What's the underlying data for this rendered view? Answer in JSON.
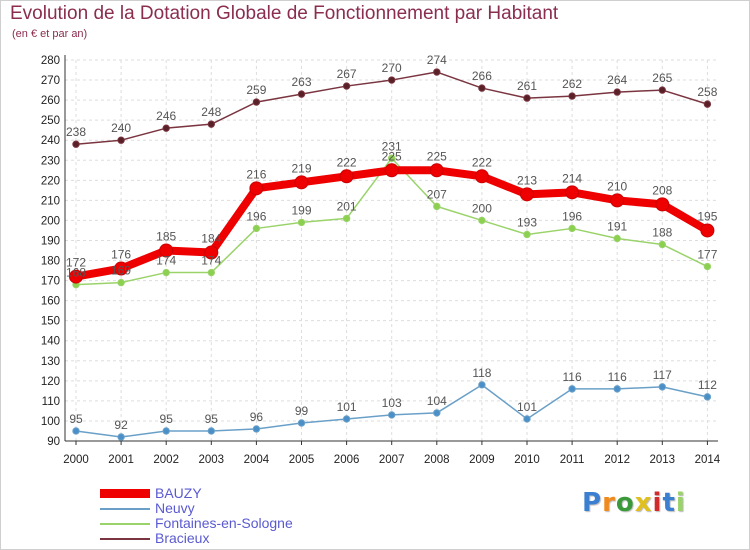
{
  "chart_data": {
    "type": "line",
    "title": "Evolution de la Dotation Globale de Fonctionnement par Habitant",
    "subtitle": "(en € et par an)",
    "x": [
      "2000",
      "2001",
      "2002",
      "2003",
      "2004",
      "2005",
      "2006",
      "2007",
      "2008",
      "2009",
      "2010",
      "2011",
      "2012",
      "2013",
      "2014"
    ],
    "ylim": [
      90,
      280
    ],
    "yticks": [
      90,
      100,
      110,
      120,
      130,
      140,
      150,
      160,
      170,
      180,
      190,
      200,
      210,
      220,
      230,
      240,
      250,
      260,
      270,
      280
    ],
    "grid": true,
    "legend_position": "bottom-left",
    "series": [
      {
        "name": "BAUZY",
        "color": "#ee0000",
        "values": [
          172,
          176,
          185,
          184,
          216,
          219,
          222,
          225,
          225,
          222,
          213,
          214,
          210,
          208,
          195
        ]
      },
      {
        "name": "Neuvy",
        "color": "#6aa0c8",
        "values": [
          95,
          92,
          95,
          95,
          96,
          99,
          101,
          103,
          104,
          118,
          101,
          116,
          116,
          117,
          112
        ]
      },
      {
        "name": "Fontaines-en-Sologne",
        "color": "#9ad36a",
        "values": [
          168,
          169,
          174,
          174,
          196,
          199,
          201,
          231,
          207,
          200,
          193,
          196,
          191,
          188,
          177
        ]
      },
      {
        "name": "Bracieux",
        "color": "#7a3540",
        "values": [
          238,
          240,
          246,
          248,
          259,
          263,
          267,
          270,
          274,
          266,
          261,
          262,
          264,
          265,
          258
        ]
      }
    ]
  },
  "legend": {
    "items": [
      {
        "label": "BAUZY",
        "color": "#ee0000"
      },
      {
        "label": "Neuvy",
        "color": "#6aa0c8"
      },
      {
        "label": "Fontaines-en-Sologne",
        "color": "#9ad36a"
      },
      {
        "label": "Bracieux",
        "color": "#7a3540"
      }
    ]
  },
  "logo": {
    "letters": [
      "P",
      "r",
      "o",
      "x",
      "i",
      "t",
      "i"
    ],
    "colors": [
      "#3a7fd0",
      "#f08a1c",
      "#3a9a3a",
      "#e0c020",
      "#d02a2a",
      "#3a7fd0",
      "#9ad36a"
    ]
  }
}
